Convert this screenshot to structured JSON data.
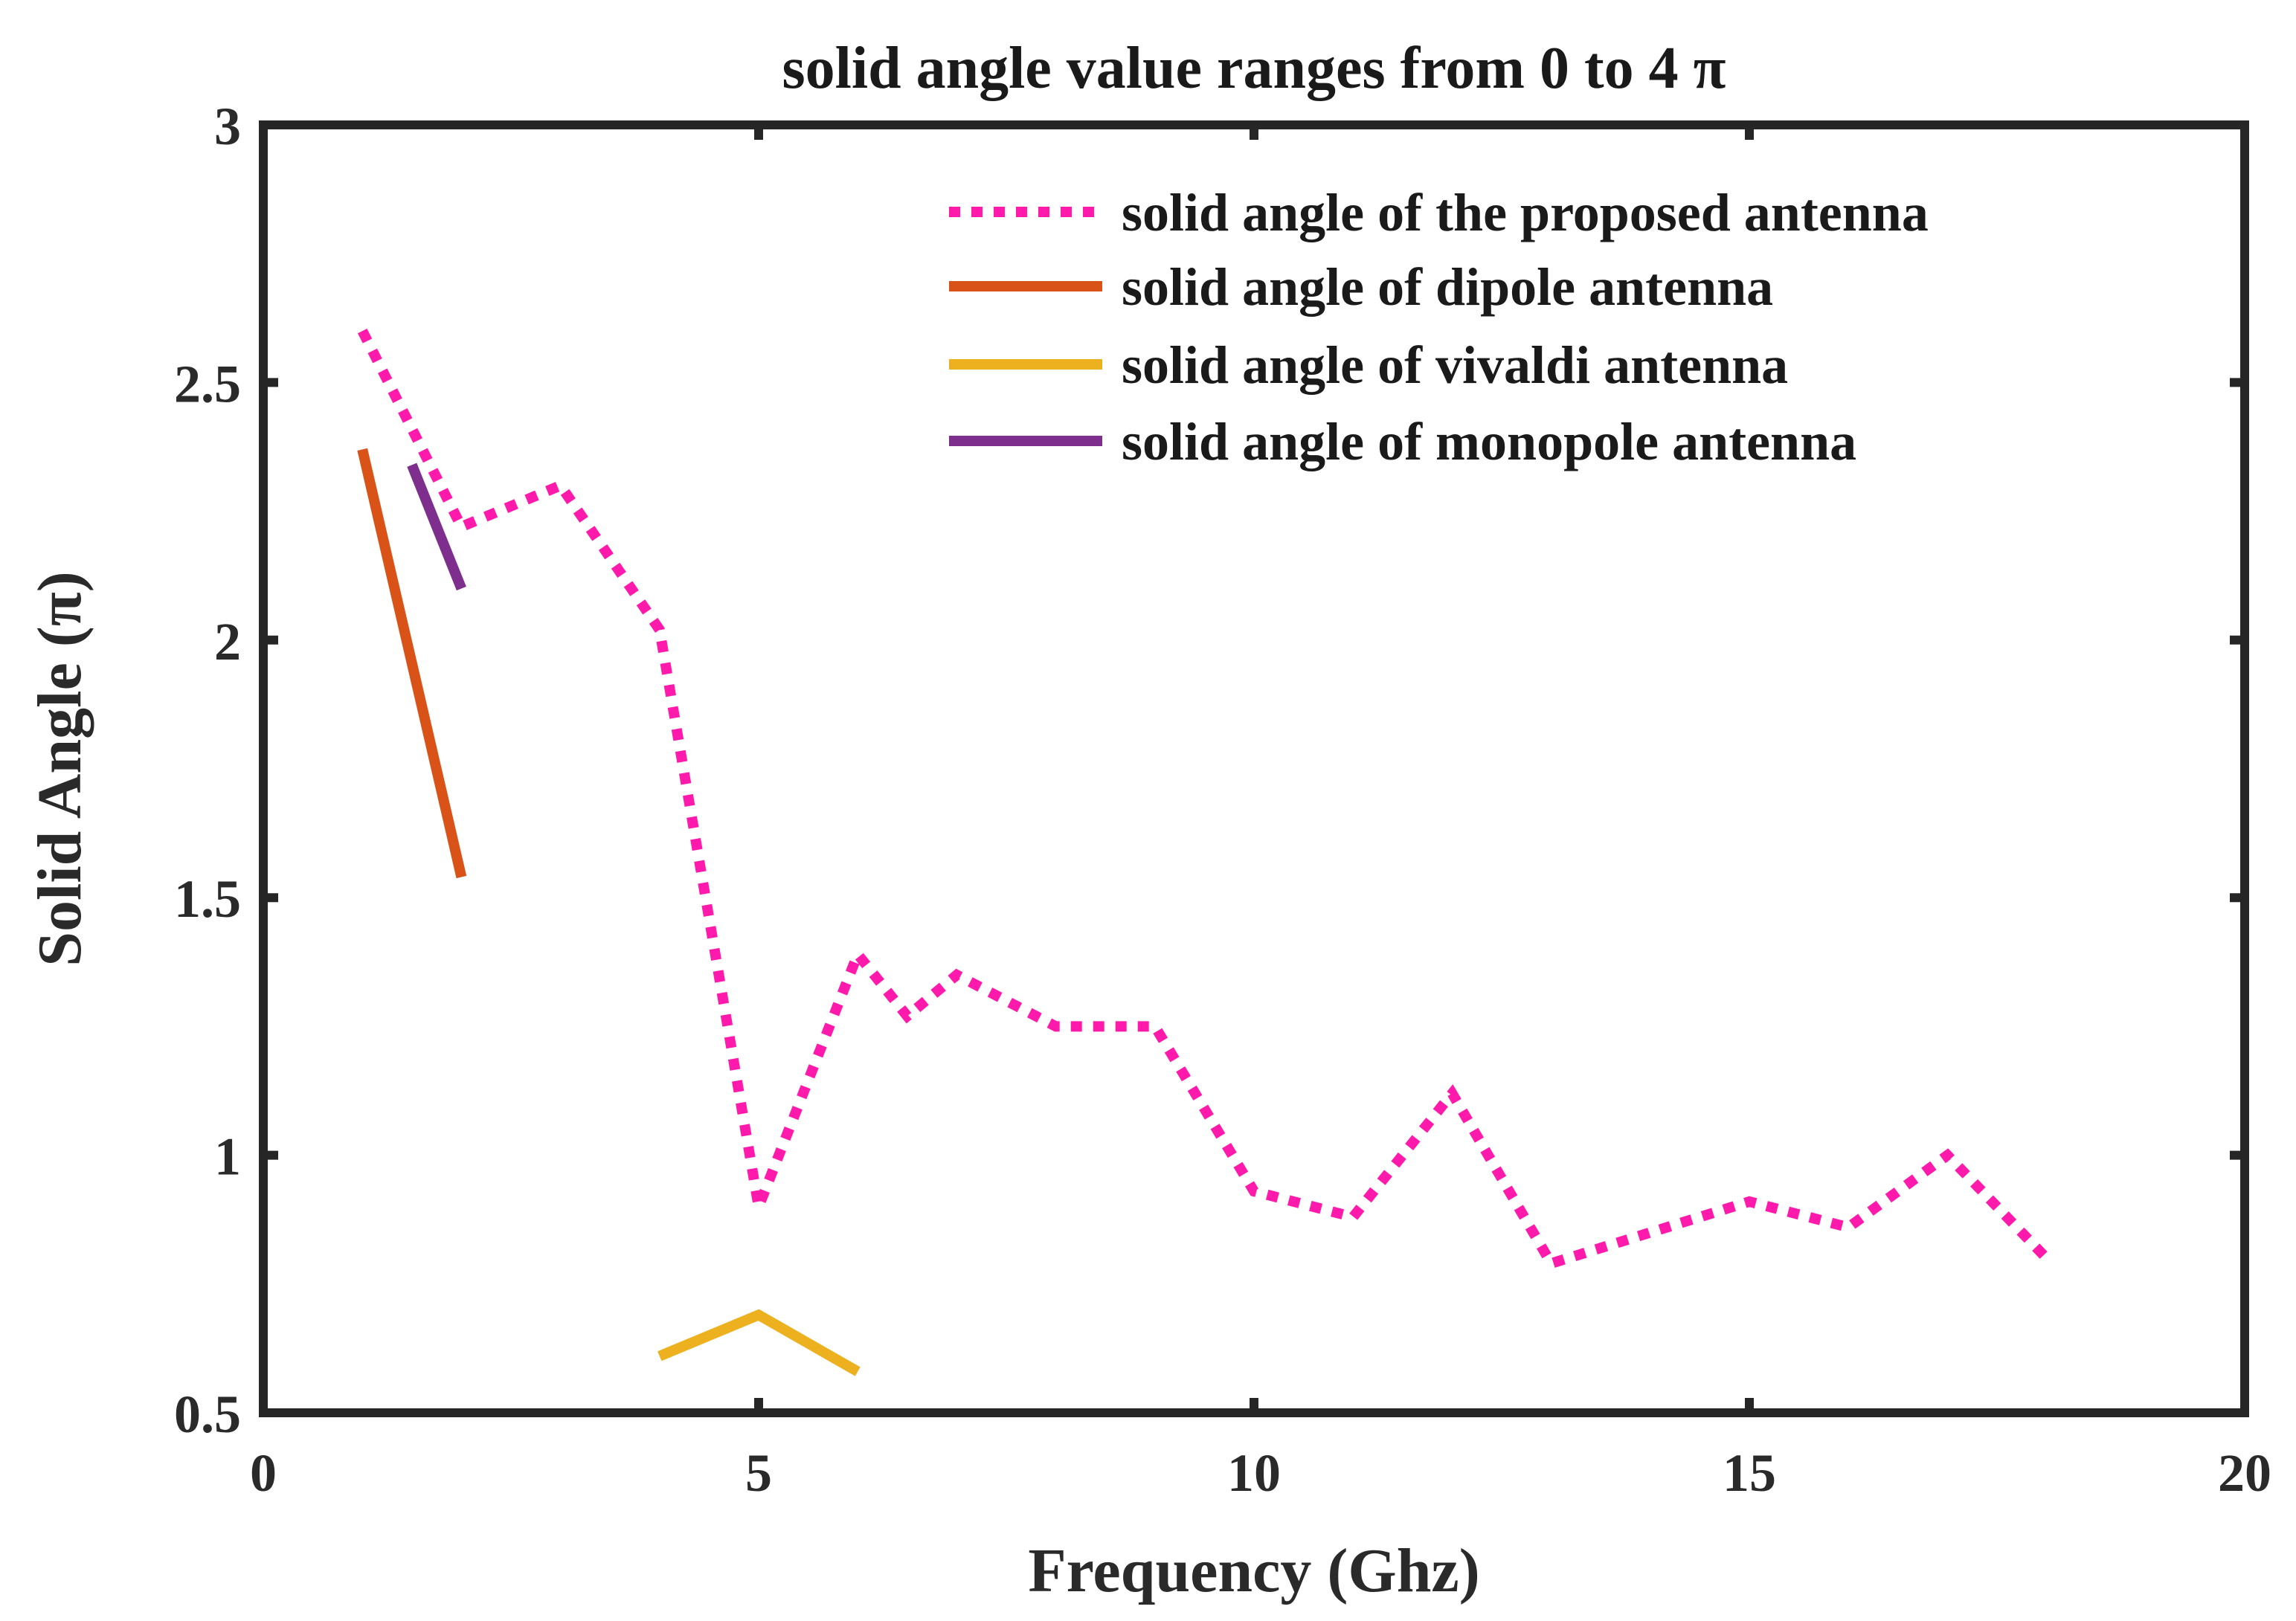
{
  "chart_data": {
    "type": "line",
    "title": "solid angle value ranges from 0 to 4 π",
    "xlabel": "Frequency (Ghz)",
    "ylabel": "Solid Angle (π)",
    "xlim": [
      0,
      20
    ],
    "ylim": [
      0.5,
      3
    ],
    "xticks": [
      0,
      5,
      10,
      15,
      20
    ],
    "yticks": [
      0.5,
      1,
      1.5,
      2,
      2.5,
      3
    ],
    "xtick_labels": [
      "0",
      "5",
      "10",
      "15",
      "20"
    ],
    "ytick_labels": [
      "0.5",
      "1",
      "1.5",
      "2",
      "2.5",
      "3"
    ],
    "grid": false,
    "legend_position": "top-right",
    "series": [
      {
        "name": "solid angle of the proposed antenna",
        "color": "#ff1aac",
        "style": "dotted",
        "x": [
          1,
          2,
          3,
          4,
          5,
          6,
          6.5,
          7,
          8,
          9,
          10,
          11,
          12,
          13,
          14,
          15,
          16,
          17,
          18
        ],
        "y": [
          2.6,
          2.22,
          2.3,
          2.02,
          0.9,
          1.39,
          1.27,
          1.35,
          1.25,
          1.25,
          0.93,
          0.88,
          1.12,
          0.79,
          0.85,
          0.91,
          0.86,
          1.0,
          0.8
        ]
      },
      {
        "name": "solid angle of dipole antenna",
        "color": "#d95319",
        "style": "solid",
        "x": [
          1,
          2
        ],
        "y": [
          2.37,
          1.54
        ]
      },
      {
        "name": "solid angle of vivaldi antenna",
        "color": "#edb120",
        "style": "solid",
        "x": [
          4,
          5,
          6
        ],
        "y": [
          0.61,
          0.69,
          0.58
        ]
      },
      {
        "name": "solid angle of monopole antenna",
        "color": "#7e2f8e",
        "style": "solid",
        "x": [
          1.5,
          2
        ],
        "y": [
          2.34,
          2.1
        ]
      }
    ]
  }
}
